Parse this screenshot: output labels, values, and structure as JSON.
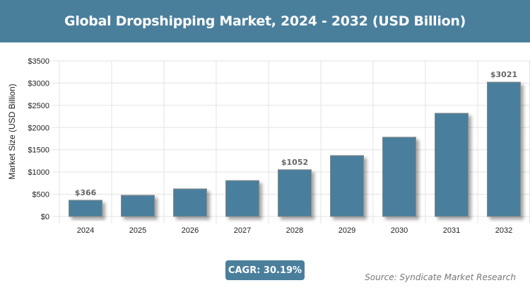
{
  "chart_data": {
    "type": "bar",
    "title": "Global Dropshipping Market, 2024 - 2032 (USD Billion)",
    "ylabel": "Market Size (USD Billion)",
    "xlabel": "",
    "categories": [
      "2024",
      "2025",
      "2026",
      "2027",
      "2028",
      "2029",
      "2030",
      "2031",
      "2032"
    ],
    "values": [
      366,
      477,
      621,
      808,
      1052,
      1370,
      1783,
      2321,
      3021
    ],
    "data_labels": {
      "0": "$366",
      "4": "$1052",
      "8": "$3021"
    },
    "ylim": [
      0,
      3500
    ],
    "yticks": [
      "$0",
      "$500",
      "$1000",
      "$1500",
      "$2000",
      "$2500",
      "$3000",
      "$3500"
    ],
    "grid": true,
    "bar_color": "#4a7f9c"
  },
  "cagr_label": "CAGR: 30.19%",
  "source": "Source: Syndicate Market Research"
}
